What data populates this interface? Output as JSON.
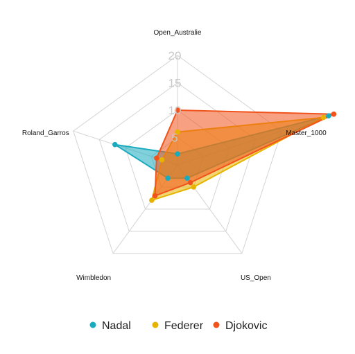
{
  "chart_data": {
    "type": "radar",
    "axes": [
      "Open_Australie",
      "Master_1000",
      "US_Open",
      "Wimbledon",
      "Roland_Garros"
    ],
    "rlim": [
      0,
      20
    ],
    "ticks": [
      5,
      10,
      15,
      20
    ],
    "tick_labels": [
      "5",
      "10",
      "15",
      "20"
    ],
    "grid": true,
    "legend_position": "bottom",
    "series": [
      {
        "name": "Nadal",
        "color": "#1aabbf",
        "values": [
          2,
          29,
          3,
          3,
          12
        ]
      },
      {
        "name": "Federer",
        "color": "#e6b400",
        "values": [
          6,
          28,
          5,
          8,
          3
        ]
      },
      {
        "name": "Djokovic",
        "color": "#f0531c",
        "values": [
          10,
          30,
          4,
          7,
          4
        ]
      }
    ]
  }
}
